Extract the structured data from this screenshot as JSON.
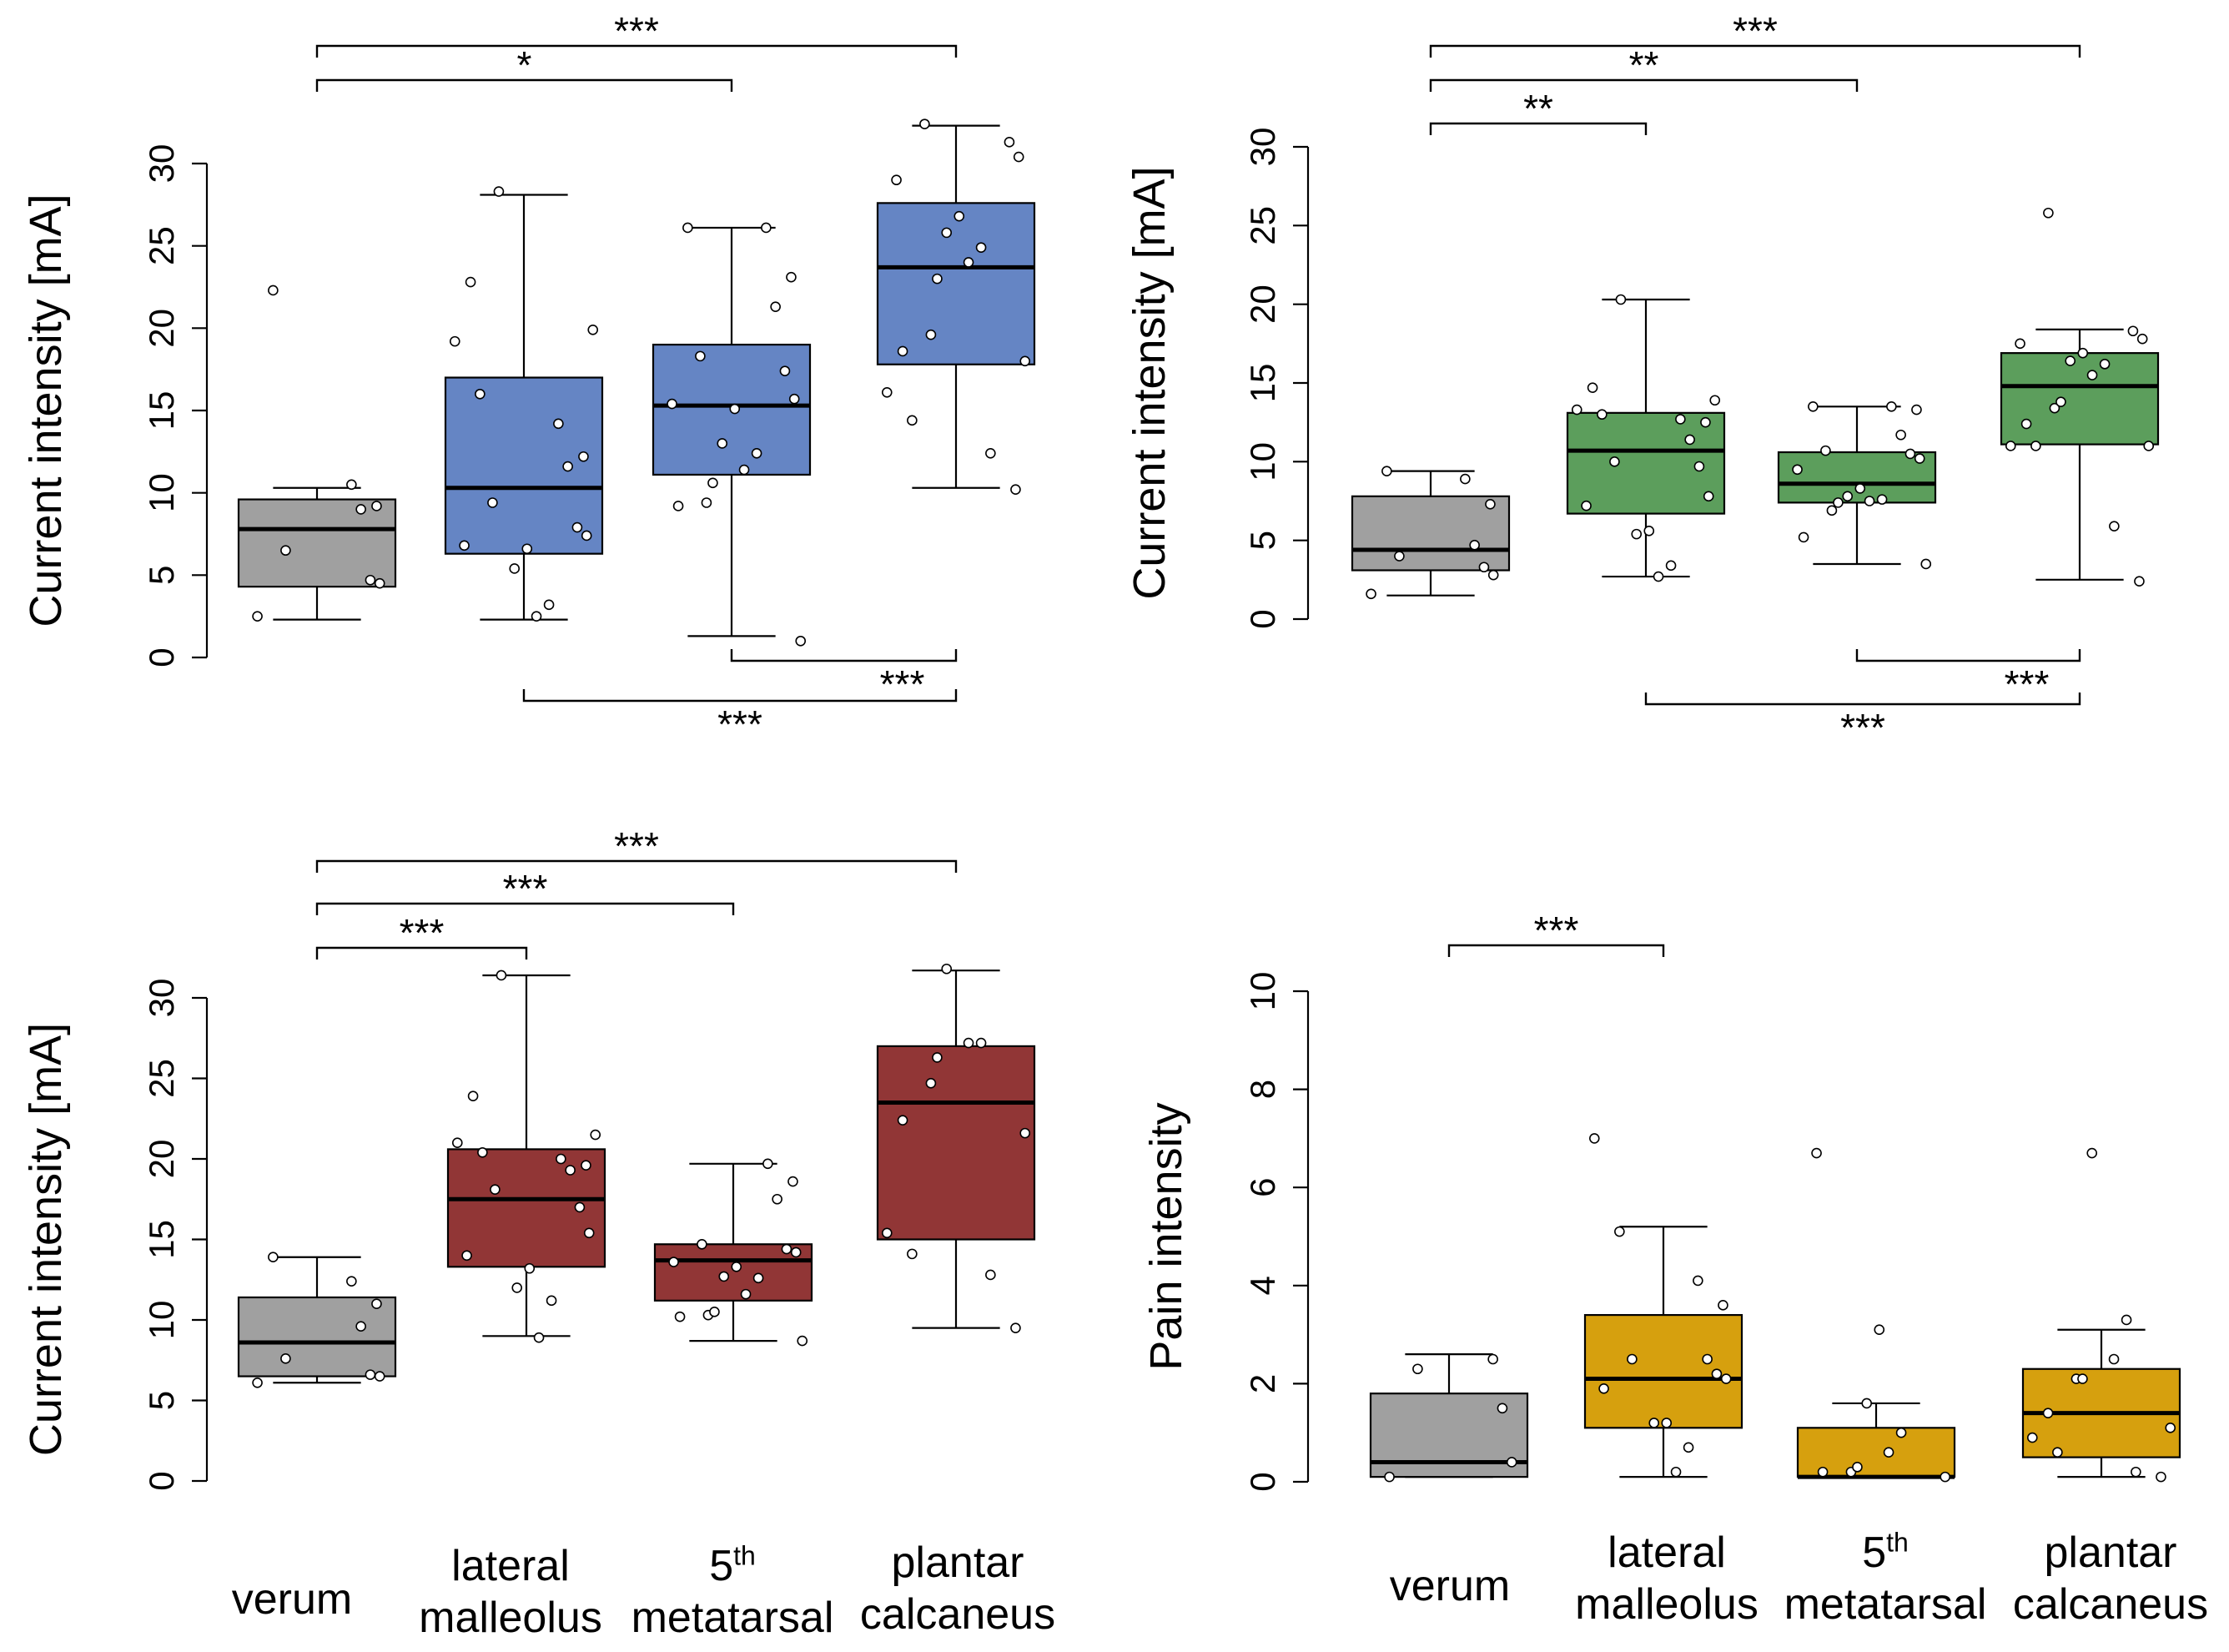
{
  "chart_data": [
    {
      "type": "box",
      "ylabel": "Current  intensity [mA]",
      "ylim": [
        0,
        30
      ],
      "yticks": [
        0,
        5,
        10,
        15,
        20,
        25,
        30
      ],
      "color": "#6585c4",
      "categories": [
        "verum",
        "lateral malleolus",
        "5th metatarsal",
        "plantar calcaneus"
      ],
      "boxes": [
        {
          "whisker_low": 2.3,
          "q1": 4.3,
          "median": 7.8,
          "q3": 9.6,
          "whisker_high": 10.3,
          "points": [
            2.5,
            4.5,
            4.7,
            6.5,
            9.0,
            9.2,
            10.5,
            22.3
          ],
          "color": "#a0a0a0"
        },
        {
          "whisker_low": 2.3,
          "q1": 6.3,
          "median": 10.3,
          "q3": 17.0,
          "whisker_high": 28.1,
          "points": [
            2.5,
            3.2,
            5.4,
            6.6,
            6.8,
            7.4,
            7.9,
            9.4,
            11.6,
            12.2,
            14.2,
            16.0,
            19.2,
            19.9,
            22.8,
            28.3
          ]
        },
        {
          "whisker_low": 1.3,
          "q1": 11.1,
          "median": 15.3,
          "q3": 19.0,
          "whisker_high": 26.1,
          "points": [
            1.0,
            9.2,
            9.4,
            10.6,
            11.4,
            12.4,
            13.0,
            15.1,
            15.4,
            15.7,
            17.4,
            18.3,
            21.3,
            23.1,
            26.1,
            26.1
          ]
        },
        {
          "whisker_low": 10.3,
          "q1": 17.8,
          "median": 23.7,
          "q3": 27.6,
          "whisker_high": 32.3,
          "points": [
            10.2,
            12.4,
            14.4,
            16.1,
            18.0,
            18.6,
            19.6,
            23.0,
            24.0,
            24.9,
            25.8,
            26.8,
            29.0,
            30.4,
            31.3,
            32.4
          ]
        }
      ],
      "brackets_above": [
        {
          "from": "verum",
          "to": "5th metatarsal",
          "label": "*"
        },
        {
          "from": "verum",
          "to": "plantar calcaneus",
          "label": "***"
        }
      ],
      "brackets_below": [
        {
          "from": "5th metatarsal",
          "to": "plantar calcaneus",
          "label": "***"
        },
        {
          "from": "lateral malleolus",
          "to": "plantar calcaneus",
          "label": "***"
        }
      ]
    },
    {
      "type": "box",
      "ylabel": "Current  intensity [mA]",
      "ylim": [
        0,
        30
      ],
      "yticks": [
        0,
        5,
        10,
        15,
        20,
        25,
        30
      ],
      "color": "#5c9e5c",
      "categories": [
        "verum",
        "lateral malleolus",
        "5th metatarsal",
        "plantar calcaneus"
      ],
      "boxes": [
        {
          "whisker_low": 1.5,
          "q1": 3.1,
          "median": 4.4,
          "q3": 7.8,
          "whisker_high": 9.4,
          "points": [
            1.6,
            2.8,
            3.3,
            4.0,
            4.7,
            7.3,
            8.9,
            9.4
          ],
          "color": "#a0a0a0"
        },
        {
          "whisker_low": 2.7,
          "q1": 6.7,
          "median": 10.7,
          "q3": 13.1,
          "whisker_high": 20.3,
          "points": [
            2.7,
            3.4,
            5.4,
            5.6,
            7.2,
            7.8,
            9.7,
            10.0,
            11.4,
            12.5,
            12.7,
            13.0,
            13.3,
            13.9,
            14.7,
            20.3
          ]
        },
        {
          "whisker_low": 3.5,
          "q1": 7.4,
          "median": 8.6,
          "q3": 10.6,
          "whisker_high": 13.5,
          "points": [
            3.5,
            5.2,
            6.9,
            7.4,
            7.5,
            7.6,
            7.8,
            8.3,
            9.5,
            10.2,
            10.5,
            10.7,
            11.7,
            13.3,
            13.5,
            13.5
          ]
        },
        {
          "whisker_low": 2.5,
          "q1": 11.1,
          "median": 14.8,
          "q3": 16.9,
          "whisker_high": 18.4,
          "points": [
            2.4,
            5.9,
            11.0,
            11.0,
            11.0,
            12.4,
            13.4,
            13.8,
            15.5,
            16.2,
            16.4,
            16.9,
            17.5,
            17.8,
            18.3,
            25.8
          ]
        }
      ],
      "brackets_above": [
        {
          "from": "verum",
          "to": "lateral malleolus",
          "label": "**"
        },
        {
          "from": "verum",
          "to": "5th metatarsal",
          "label": "**"
        },
        {
          "from": "verum",
          "to": "plantar calcaneus",
          "label": "***"
        }
      ],
      "brackets_below": [
        {
          "from": "5th metatarsal",
          "to": "plantar calcaneus",
          "label": "***"
        },
        {
          "from": "lateral malleolus",
          "to": "plantar calcaneus",
          "label": "***"
        }
      ]
    },
    {
      "type": "box",
      "ylabel": "Current  intensity [mA]",
      "ylim": [
        0,
        30
      ],
      "yticks": [
        0,
        5,
        10,
        15,
        20,
        25,
        30
      ],
      "color": "#913636",
      "categories": [
        "verum",
        "lateral malleolus",
        "5th metatarsal",
        "plantar calcaneus"
      ],
      "boxes": [
        {
          "whisker_low": 6.1,
          "q1": 6.5,
          "median": 8.6,
          "q3": 11.4,
          "whisker_high": 13.9,
          "points": [
            6.1,
            6.5,
            6.6,
            7.6,
            9.6,
            11.0,
            12.4,
            13.9
          ],
          "color": "#a0a0a0"
        },
        {
          "whisker_low": 9.0,
          "q1": 13.3,
          "median": 17.5,
          "q3": 20.6,
          "whisker_high": 31.4,
          "points": [
            8.9,
            11.2,
            12.0,
            13.2,
            14.0,
            15.4,
            17.0,
            18.1,
            19.3,
            19.6,
            20.0,
            20.4,
            21.0,
            21.5,
            23.9,
            31.4
          ]
        },
        {
          "whisker_low": 8.7,
          "q1": 11.2,
          "median": 13.7,
          "q3": 14.7,
          "whisker_high": 19.7,
          "points": [
            8.7,
            10.2,
            10.3,
            10.5,
            11.6,
            12.6,
            12.7,
            13.3,
            13.6,
            14.2,
            14.4,
            14.7,
            17.5,
            18.6,
            19.7
          ]
        },
        {
          "whisker_low": 9.5,
          "q1": 15.0,
          "median": 23.5,
          "q3": 27.0,
          "whisker_high": 31.7,
          "points": [
            9.5,
            12.8,
            14.1,
            15.4,
            21.6,
            22.4,
            24.7,
            26.3,
            27.2,
            27.2,
            31.8
          ]
        }
      ],
      "brackets_above": [
        {
          "from": "verum",
          "to": "lateral malleolus",
          "label": "***"
        },
        {
          "from": "verum",
          "to": "5th metatarsal",
          "label": "***"
        },
        {
          "from": "verum",
          "to": "plantar calcaneus",
          "label": "***"
        }
      ],
      "brackets_below": []
    },
    {
      "type": "box",
      "ylabel": "Pain intensity",
      "ylim": [
        0,
        10
      ],
      "yticks": [
        0,
        2,
        4,
        6,
        8,
        10
      ],
      "color": "#d6a00e",
      "categories": [
        "verum",
        "lateral malleolus",
        "5th metatarsal",
        "plantar calcaneus"
      ],
      "boxes": [
        {
          "whisker_low": 0.1,
          "q1": 0.1,
          "median": 0.4,
          "q3": 1.8,
          "whisker_high": 2.6,
          "points": [
            0.1,
            0.4,
            1.5,
            2.3,
            2.5
          ],
          "color": "#a0a0a0"
        },
        {
          "whisker_low": 0.1,
          "q1": 1.1,
          "median": 2.1,
          "q3": 3.4,
          "whisker_high": 5.2,
          "points": [
            0.2,
            0.7,
            1.2,
            1.2,
            1.9,
            2.1,
            2.2,
            2.5,
            2.5,
            3.6,
            4.1,
            5.1,
            7.0
          ]
        },
        {
          "whisker_low": 0.1,
          "q1": 0.1,
          "median": 0.1,
          "q3": 1.1,
          "whisker_high": 1.6,
          "points": [
            0.1,
            0.2,
            0.2,
            0.3,
            0.6,
            1.0,
            1.6,
            3.1,
            6.7
          ]
        },
        {
          "whisker_low": 0.1,
          "q1": 0.5,
          "median": 1.4,
          "q3": 2.3,
          "whisker_high": 3.1,
          "points": [
            0.1,
            0.2,
            0.6,
            0.9,
            1.1,
            1.4,
            2.1,
            2.1,
            2.5,
            3.3,
            6.7
          ]
        }
      ],
      "brackets_above": [
        {
          "from": "verum",
          "to": "lateral malleolus",
          "label": "***"
        }
      ],
      "brackets_below": []
    }
  ],
  "category_labels": {
    "verum": "verum",
    "lateral_line1": "lateral",
    "lateral_line2": "malleolus",
    "meta_num": "5",
    "meta_sup": "th",
    "meta_line2": "metatarsal",
    "plantar_line1": "plantar",
    "plantar_line2": "calcaneus"
  }
}
